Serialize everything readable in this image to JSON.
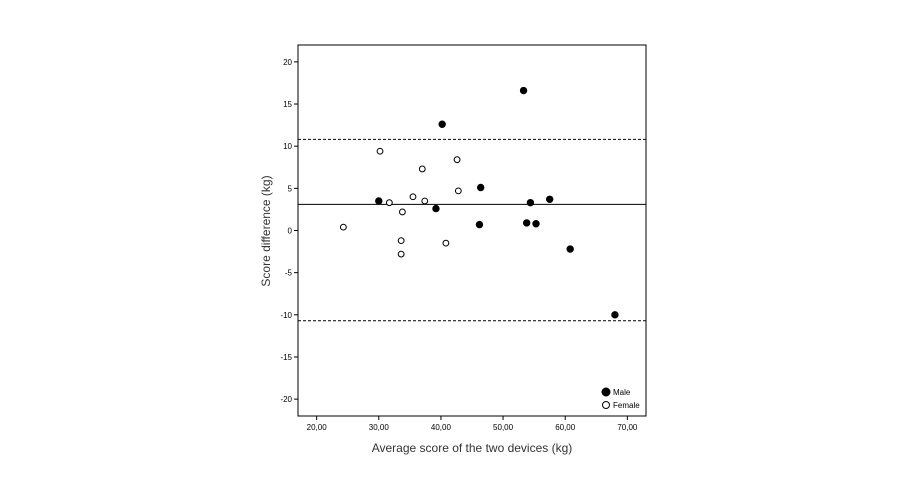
{
  "chart_data": {
    "type": "scatter",
    "xlabel": "Average score of the two devices (kg)",
    "ylabel": "Score difference (kg)",
    "xlim": [
      17,
      73
    ],
    "ylim": [
      -22,
      22
    ],
    "x_ticks": [
      20,
      30,
      40,
      50,
      60,
      70
    ],
    "x_tick_labels": [
      "20,00",
      "30,00",
      "40,00",
      "50,00",
      "60,00",
      "70,00"
    ],
    "y_ticks": [
      20,
      15,
      10,
      5,
      0,
      -5,
      -10,
      -15,
      -20
    ],
    "y_tick_labels": [
      "20",
      "15",
      "10",
      "5",
      "0",
      "-5",
      "-10",
      "-15",
      "-20"
    ],
    "grid": false,
    "reference_lines": [
      {
        "y": 3.1,
        "style": "solid"
      },
      {
        "y": 10.8,
        "style": "dashed"
      },
      {
        "y": -10.7,
        "style": "dashed"
      }
    ],
    "legend_position": "bottom-right",
    "series": [
      {
        "name": "Male",
        "marker": "filled-circle",
        "color": "#000000",
        "points": [
          {
            "x": 30.0,
            "y": 3.5
          },
          {
            "x": 39.2,
            "y": 2.6
          },
          {
            "x": 40.2,
            "y": 12.6
          },
          {
            "x": 46.2,
            "y": 0.7
          },
          {
            "x": 46.4,
            "y": 5.1
          },
          {
            "x": 53.3,
            "y": 16.6
          },
          {
            "x": 53.8,
            "y": 0.9
          },
          {
            "x": 54.4,
            "y": 3.3
          },
          {
            "x": 55.3,
            "y": 0.8
          },
          {
            "x": 57.5,
            "y": 3.7
          },
          {
            "x": 60.8,
            "y": -2.2
          },
          {
            "x": 68.0,
            "y": -10.0
          }
        ]
      },
      {
        "name": "Female",
        "marker": "open-circle",
        "color": "#000000",
        "points": [
          {
            "x": 24.3,
            "y": 0.4
          },
          {
            "x": 30.2,
            "y": 9.4
          },
          {
            "x": 31.7,
            "y": 3.3
          },
          {
            "x": 33.6,
            "y": -1.2
          },
          {
            "x": 33.6,
            "y": -2.8
          },
          {
            "x": 33.8,
            "y": 2.2
          },
          {
            "x": 35.5,
            "y": 4.0
          },
          {
            "x": 37.0,
            "y": 7.3
          },
          {
            "x": 37.4,
            "y": 3.5
          },
          {
            "x": 40.8,
            "y": -1.5
          },
          {
            "x": 42.6,
            "y": 8.4
          },
          {
            "x": 42.8,
            "y": 4.7
          }
        ]
      }
    ]
  }
}
